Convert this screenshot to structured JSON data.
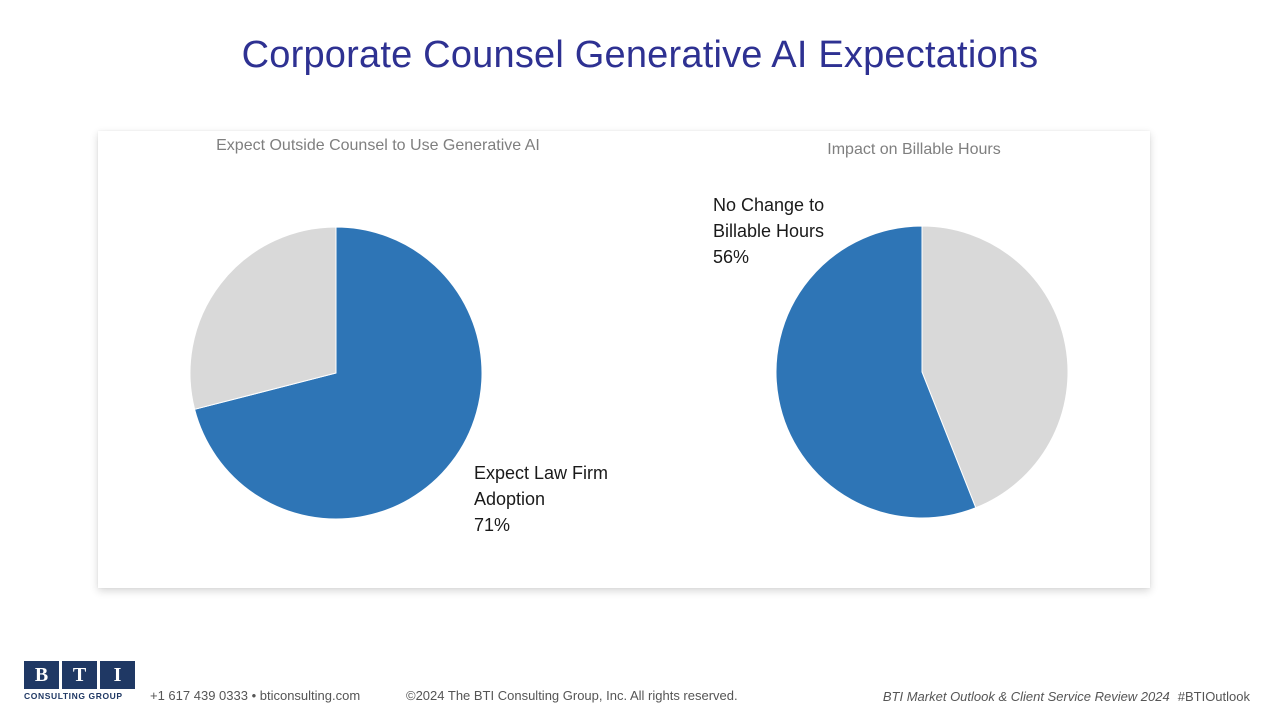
{
  "title": "Corporate Counsel Generative AI Expectations",
  "chart_data": [
    {
      "type": "pie",
      "title": "Expect Outside Counsel to Use Generative AI",
      "slices": [
        {
          "label": "Expect Law Firm Adoption",
          "value": 71,
          "color": "#2e75b6",
          "shown_label": "Expect Law Firm\nAdoption\n71%"
        },
        {
          "label": "",
          "value": 29,
          "color": "#d9d9d9"
        }
      ],
      "start_angle_deg": 0
    },
    {
      "type": "pie",
      "title": "Impact on Billable Hours",
      "slices": [
        {
          "label": "",
          "value": 44,
          "color": "#d9d9d9"
        },
        {
          "label": "No Change to Billable Hours",
          "value": 56,
          "color": "#2e75b6",
          "shown_label": "No Change to\nBillable Hours\n56%"
        }
      ],
      "start_angle_deg": 0
    }
  ],
  "footer": {
    "logo_letters": [
      "B",
      "T",
      "I"
    ],
    "logo_subtitle": "CONSULTING GROUP",
    "contact": "+1 617 439 0333 • bticonsulting.com",
    "copyright": "©2024  The BTI Consulting Group,  Inc. All rights reserved.",
    "publication": "BTI Market Outlook & Client Service Review 2024",
    "hashtag": "#BTIOutlook"
  },
  "colors": {
    "title": "#2e3192",
    "accent_blue": "#2e75b6",
    "remainder_gray": "#d9d9d9",
    "logo_navy": "#1f3864"
  }
}
